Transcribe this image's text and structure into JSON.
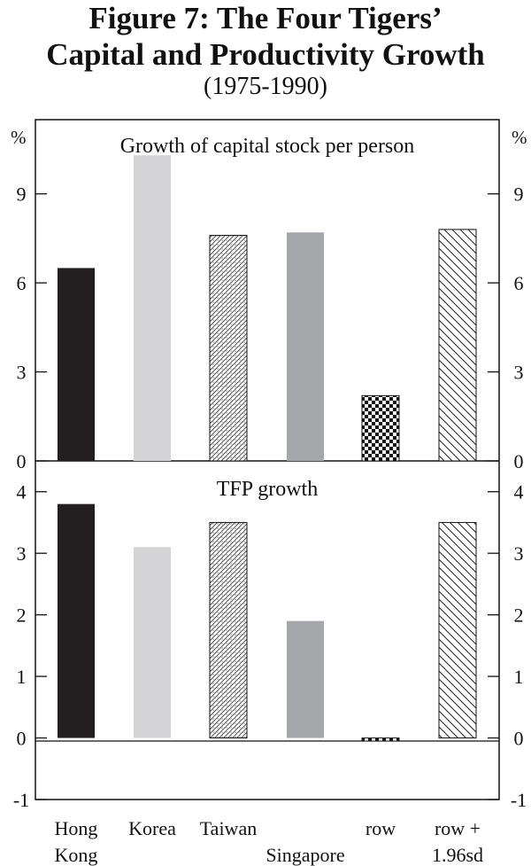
{
  "title": {
    "line1": "Figure 7: The Four Tigers’",
    "line2": "Capital and Productivity Growth",
    "line3": "(1975-1990)"
  },
  "chart_data": [
    {
      "type": "bar",
      "title": "Growth of capital stock per person",
      "unit_label": "%",
      "categories": [
        "Hong Kong",
        "Korea",
        "Taiwan",
        "Singapore",
        "row",
        "row + 1.96sd"
      ],
      "values": [
        6.5,
        10.3,
        7.6,
        7.7,
        2.2,
        7.8
      ],
      "ylim": [
        0,
        11.5
      ],
      "yticks": [
        0,
        3,
        6,
        9
      ],
      "ytick_labels": [
        "0",
        "3",
        "6",
        "9"
      ]
    },
    {
      "type": "bar",
      "title": "TFP growth",
      "categories": [
        "Hong Kong",
        "Korea",
        "Taiwan",
        "Singapore",
        "row",
        "row + 1.96sd"
      ],
      "values": [
        3.8,
        3.1,
        3.5,
        1.9,
        -0.05,
        3.5
      ],
      "ylim": [
        -1,
        4.5
      ],
      "yticks": [
        -1,
        0,
        1,
        2,
        3,
        4
      ],
      "ytick_labels": [
        "-1",
        "0",
        "1",
        "2",
        "3",
        "4"
      ]
    }
  ],
  "x_labels": [
    {
      "lines": [
        "Hong",
        "Kong"
      ]
    },
    {
      "lines": [
        "Korea"
      ]
    },
    {
      "lines": [
        "Taiwan"
      ]
    },
    {
      "lines": [
        "",
        "Singapore"
      ]
    },
    {
      "lines": [
        "row"
      ]
    },
    {
      "lines": [
        "row +",
        "1.96sd"
      ]
    }
  ],
  "bar_styles": [
    "solid-black",
    "solid-lightgray",
    "dots",
    "solid-gray",
    "checker",
    "hatch"
  ],
  "colors": {
    "black": "#231f20",
    "light_gray": "#d4d4d6",
    "mid_gray": "#a6a7ab",
    "axis": "#111111"
  }
}
